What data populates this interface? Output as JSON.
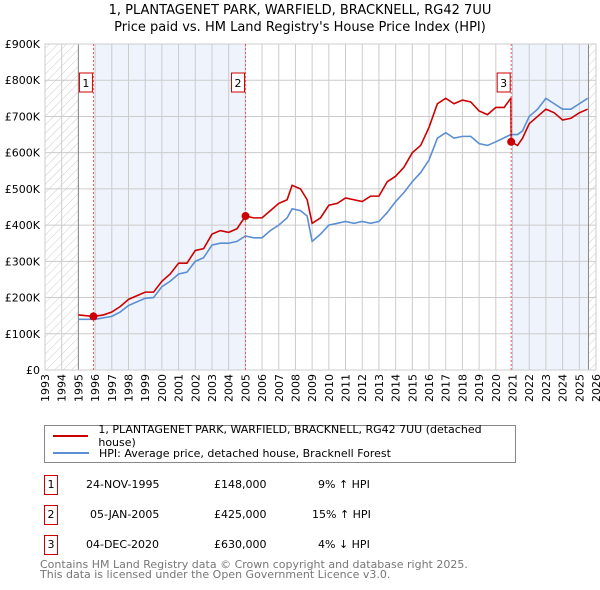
{
  "chart_data": {
    "type": "line",
    "title": "1, PLANTAGENET PARK, WARFIELD, BRACKNELL, RG42 7UU",
    "subtitle": "Price paid vs. HM Land Registry's House Price Index (HPI)",
    "xlim": [
      1993,
      2026
    ],
    "ylim": [
      0,
      900000
    ],
    "x_ticks": [
      "1993",
      "1994",
      "1995",
      "1996",
      "1997",
      "1998",
      "1999",
      "2000",
      "2001",
      "2002",
      "2003",
      "2004",
      "2005",
      "2006",
      "2007",
      "2008",
      "2009",
      "2010",
      "2011",
      "2012",
      "2013",
      "2014",
      "2015",
      "2016",
      "2017",
      "2018",
      "2019",
      "2020",
      "2021",
      "2022",
      "2023",
      "2024",
      "2025",
      "2026"
    ],
    "y_ticks": [
      {
        "v": 0,
        "label": "£0"
      },
      {
        "v": 100000,
        "label": "£100K"
      },
      {
        "v": 200000,
        "label": "£200K"
      },
      {
        "v": 300000,
        "label": "£300K"
      },
      {
        "v": 400000,
        "label": "£400K"
      },
      {
        "v": 500000,
        "label": "£500K"
      },
      {
        "v": 600000,
        "label": "£600K"
      },
      {
        "v": 700000,
        "label": "£700K"
      },
      {
        "v": 800000,
        "label": "£800K"
      },
      {
        "v": 900000,
        "label": "£900K"
      }
    ],
    "grid": true,
    "hatched_ranges": [
      [
        1993,
        1995
      ],
      [
        2025.55,
        2026
      ]
    ],
    "shaded_ranges": [
      [
        1995.9,
        2005.01
      ],
      [
        2020.92,
        2025.55
      ]
    ],
    "series": [
      {
        "name": "1, PLANTAGENET PARK, WARFIELD, BRACKNELL, RG42 7UU (detached house)",
        "color": "#cc0000",
        "x": [
          1995,
          1995.9,
          1996.5,
          1997,
          1997.5,
          1998,
          1998.5,
          1999,
          1999.5,
          2000,
          2000.5,
          2001,
          2001.5,
          2002,
          2002.5,
          2003,
          2003.5,
          2004,
          2004.5,
          2005.01,
          2005.5,
          2006,
          2006.5,
          2007,
          2007.5,
          2007.8,
          2008.3,
          2008.7,
          2009,
          2009.5,
          2010,
          2010.5,
          2011,
          2011.5,
          2012,
          2012.5,
          2013,
          2013.5,
          2014,
          2014.5,
          2015,
          2015.5,
          2016,
          2016.5,
          2017,
          2017.5,
          2018,
          2018.5,
          2019,
          2019.5,
          2020,
          2020.5,
          2020.9,
          2020.92,
          2021.3,
          2021.6,
          2022,
          2022.5,
          2023,
          2023.5,
          2024,
          2024.5,
          2025,
          2025.5
        ],
        "y": [
          152000,
          148000,
          152000,
          160000,
          175000,
          195000,
          205000,
          215000,
          215000,
          245000,
          265000,
          295000,
          295000,
          330000,
          335000,
          375000,
          385000,
          380000,
          390000,
          425000,
          420000,
          420000,
          440000,
          460000,
          470000,
          510000,
          500000,
          470000,
          405000,
          420000,
          455000,
          460000,
          475000,
          470000,
          465000,
          480000,
          480000,
          520000,
          535000,
          560000,
          600000,
          620000,
          670000,
          735000,
          750000,
          735000,
          745000,
          740000,
          715000,
          705000,
          725000,
          725000,
          750000,
          630000,
          620000,
          640000,
          680000,
          700000,
          720000,
          710000,
          690000,
          695000,
          710000,
          720000
        ]
      },
      {
        "name": "HPI: Average price, detached house, Bracknell Forest",
        "color": "#5b8fd4",
        "x": [
          1995,
          1996,
          1997,
          1997.5,
          1998,
          1999,
          1999.5,
          2000,
          2000.5,
          2001,
          2001.5,
          2002,
          2002.5,
          2003,
          2003.5,
          2004,
          2004.5,
          2005,
          2005.5,
          2006,
          2006.5,
          2007,
          2007.5,
          2007.8,
          2008.3,
          2008.7,
          2009,
          2009.5,
          2010,
          2010.5,
          2011,
          2011.5,
          2012,
          2012.5,
          2013,
          2013.5,
          2014,
          2014.5,
          2015,
          2015.5,
          2016,
          2016.5,
          2017,
          2017.5,
          2018,
          2018.5,
          2019,
          2019.5,
          2020,
          2020.9,
          2021.3,
          2021.6,
          2022,
          2022.5,
          2023,
          2023.5,
          2024,
          2024.5,
          2025,
          2025.5
        ],
        "y": [
          140000,
          140000,
          148000,
          160000,
          178000,
          198000,
          200000,
          230000,
          245000,
          265000,
          270000,
          300000,
          310000,
          345000,
          350000,
          350000,
          355000,
          370000,
          365000,
          365000,
          385000,
          400000,
          420000,
          445000,
          440000,
          425000,
          355000,
          375000,
          400000,
          405000,
          410000,
          405000,
          410000,
          405000,
          410000,
          435000,
          465000,
          490000,
          520000,
          545000,
          580000,
          640000,
          655000,
          640000,
          645000,
          645000,
          625000,
          620000,
          630000,
          650000,
          650000,
          660000,
          700000,
          720000,
          750000,
          735000,
          720000,
          720000,
          735000,
          750000
        ]
      }
    ],
    "sales": [
      {
        "id": "1",
        "x": 1995.9,
        "y": 148000
      },
      {
        "id": "2",
        "x": 2005.01,
        "y": 425000
      },
      {
        "id": "3",
        "x": 2020.92,
        "y": 630000
      }
    ],
    "legend_position": "below"
  },
  "transactions": [
    {
      "id": "1",
      "date": "24-NOV-1995",
      "price": "£148,000",
      "hpi": "9% ↑ HPI"
    },
    {
      "id": "2",
      "date": "05-JAN-2005",
      "price": "£425,000",
      "hpi": "15% ↑ HPI"
    },
    {
      "id": "3",
      "date": "04-DEC-2020",
      "price": "£630,000",
      "hpi": "4% ↓ HPI"
    }
  ],
  "footer": {
    "line1": "Contains HM Land Registry data © Crown copyright and database right 2025.",
    "line2": "This data is licensed under the Open Government Licence v3.0."
  }
}
